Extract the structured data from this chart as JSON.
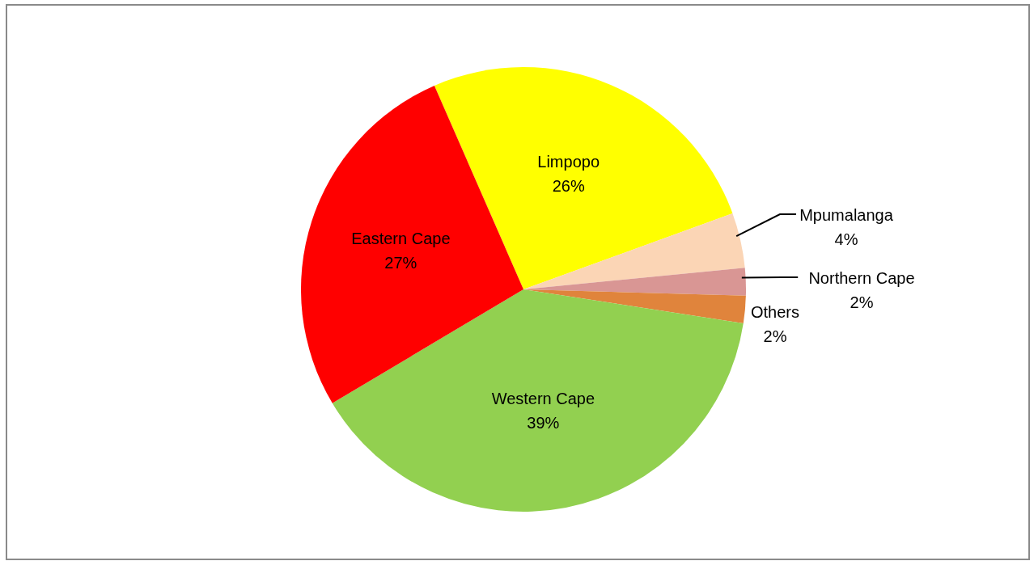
{
  "chart_data": {
    "type": "pie",
    "categories": [
      "Limpopo",
      "Mpumalanga",
      "Northern Cape",
      "Others",
      "Western Cape",
      "Eastern Cape"
    ],
    "values": [
      26,
      4,
      2,
      2,
      39,
      27
    ],
    "colors": [
      "#ffff00",
      "#fbd5b5",
      "#d99694",
      "#e0843c",
      "#92d050",
      "#ff0000"
    ],
    "value_labels": [
      "26%",
      "4%",
      "2%",
      "2%",
      "39%",
      "27%"
    ],
    "legend": false
  }
}
